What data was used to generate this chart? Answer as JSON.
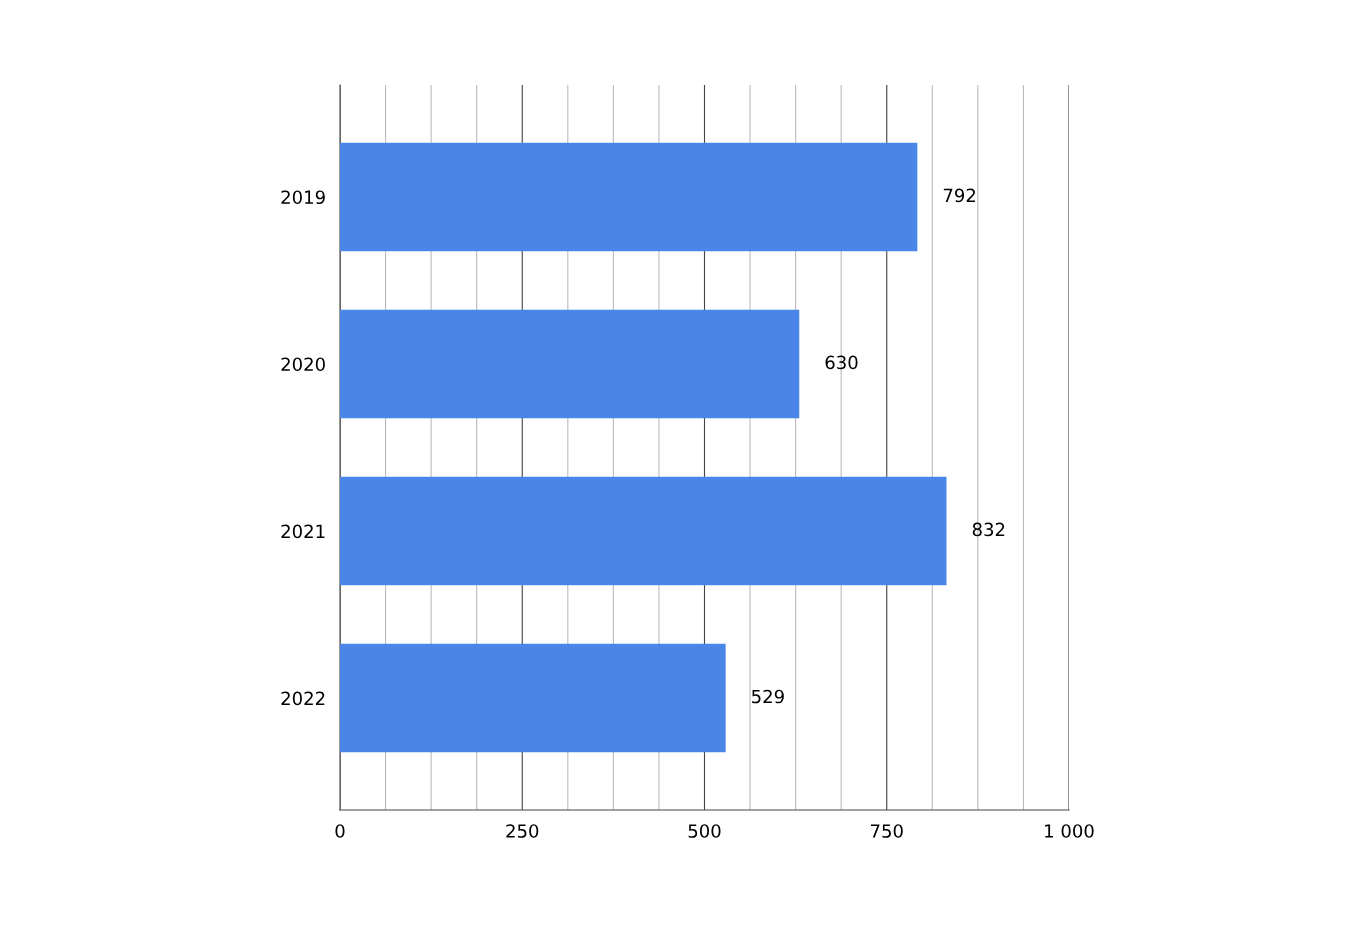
{
  "chart_data": {
    "type": "bar",
    "orientation": "horizontal",
    "categories": [
      "2019",
      "2020",
      "2021",
      "2022"
    ],
    "values": [
      792,
      630,
      832,
      529
    ],
    "color": "#4a86e8",
    "xlim": [
      0,
      1000
    ],
    "xticks": [
      0,
      {
        "value": 62.5,
        "label": null
      },
      {
        "value": 125,
        "label": null
      },
      {
        "value": 187.5,
        "label": null
      },
      {
        "value": 250,
        "label": "250"
      },
      {
        "value": 312.5,
        "label": null
      },
      {
        "value": 375,
        "label": null
      },
      {
        "value": 437.5,
        "label": null
      },
      {
        "value": 500,
        "label": "500"
      },
      {
        "value": 562.5,
        "label": null
      },
      {
        "value": 625,
        "label": null
      },
      {
        "value": 687.5,
        "label": null
      },
      {
        "value": 750,
        "label": "750"
      },
      {
        "value": 812.5,
        "label": null
      },
      {
        "value": 875,
        "label": null
      },
      {
        "value": 937.5,
        "label": null
      },
      {
        "value": 1000,
        "label": "1 000"
      }
    ],
    "grid": "x",
    "data_labels": true
  }
}
